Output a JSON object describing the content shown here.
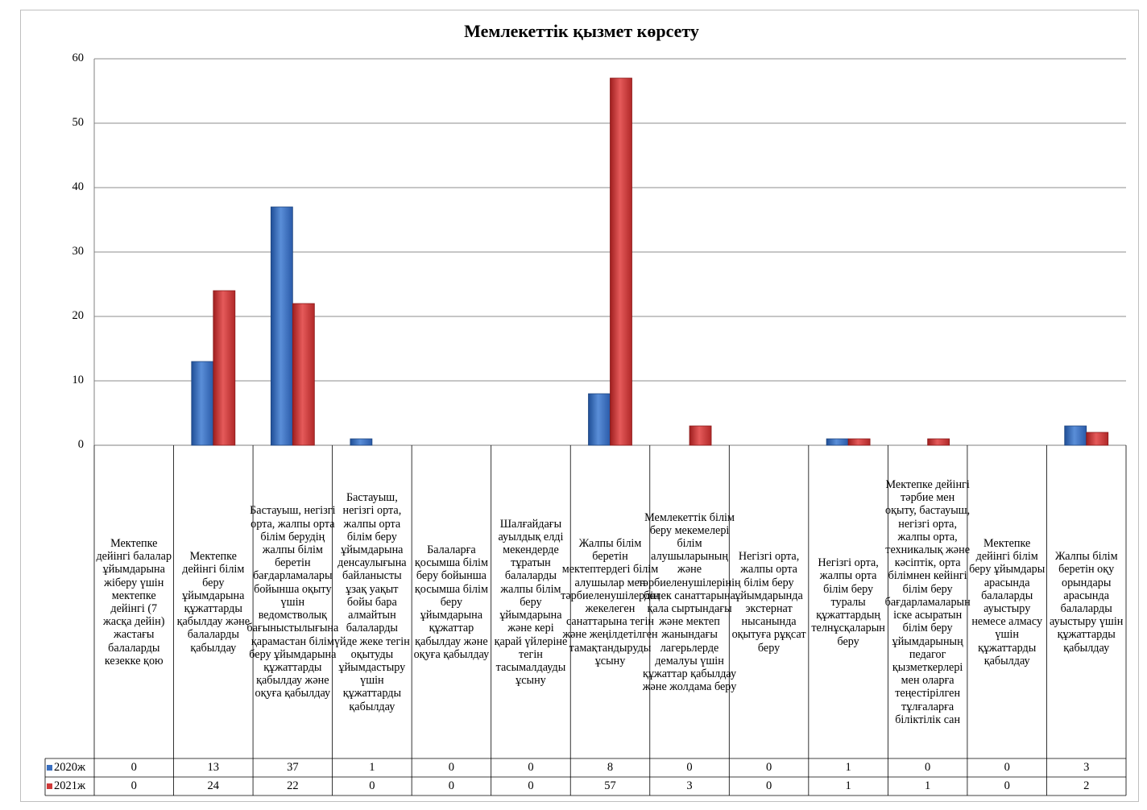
{
  "chart_data": {
    "type": "bar",
    "title": "Мемлекеттік қызмет көрсету",
    "xlabel": "",
    "ylabel": "",
    "ylim": [
      0,
      60
    ],
    "yticks": [
      "0",
      "10",
      "20",
      "30",
      "40",
      "50",
      "60"
    ],
    "grid": true,
    "legend": "table-left",
    "categories": [
      "Мектепке дейінгі балалар ұйымдарына жіберу үшін мектепке дейінгі (7 жасқа дейін) жастағы балаларды кезекке қою",
      "Мектепке дейінгі білім беру ұйымдарына құжаттарды қабылдау және балаларды қабылдау",
      "Бастауыш, негізгі орта, жалпы орта білім берудің жалпы білім беретін бағдарламалары бойынша оқыту үшін ведомстволық бағыныстылығына қарамастан білім беру ұйымдарына құжаттарды қабылдау және оқуға қабылдау",
      "Бастауыш, негізгі орта, жалпы орта білім беру ұйымдарына денсаулығына байланысты ұзақ уақыт бойы бара алмайтын балаларды үйде жеке тегін оқытуды ұйымдастыру үшін құжаттарды қабылдау",
      "Балаларға қосымша білім беру бойынша қосымша білім беру ұйымдарына құжаттар қабылдау және оқуға қабылдау",
      "Шалғайдағы ауылдық елді мекендерде тұратын балаларды жалпы білім беру ұйымдарына және кері қарай үйлеріне тегін тасымалдауды ұсыну",
      "Жалпы білім беретін мектептердегі білім алушылар мен тәрбиеленушілердің жекелеген санаттарына тегін және жеңілдетілген тамақтандыруды ұсыну",
      "Мемлекеттік білім беру мекемелері білім алушыларының және тәрбиеленушілерінің бөлек санаттарына қала сыртындағы және мектеп жанындағы лагерьлерде демалуы үшін құжаттар қабылдау және жолдама беру",
      "Негізгі орта, жалпы орта білім беру ұйымдарында экстернат нысанында оқытуға рұқсат беру",
      "Негізгі орта, жалпы орта білім беру туралы құжаттардың телнұсқаларын беру",
      "Мектепке дейінгі тәрбие мен оқыту, бастауыш, негізгі орта, жалпы орта, техникалық және кәсіптік, орта білімнен кейінгі білім беру бағдарламаларын іске асыратын білім беру ұйымдарының педагог қызметкерлері мен оларға теңестірілген тұлғаларға біліктілік сан",
      "Мектепке дейінгі білім беру ұйымдары арасында балаларды ауыстыру немесе алмасу үшін құжаттарды қабылдау",
      "Жалпы білім беретін оқу орындары арасында балаларды ауыстыру үшін құжаттарды қабылдау"
    ],
    "series": [
      {
        "name": "2020ж",
        "color": "#3a6fc0",
        "values": [
          0,
          13,
          37,
          1,
          0,
          0,
          8,
          0,
          0,
          1,
          0,
          0,
          3
        ]
      },
      {
        "name": "2021ж",
        "color": "#d03a3a",
        "values": [
          0,
          24,
          22,
          0,
          0,
          0,
          57,
          3,
          0,
          1,
          1,
          0,
          2
        ]
      }
    ]
  }
}
